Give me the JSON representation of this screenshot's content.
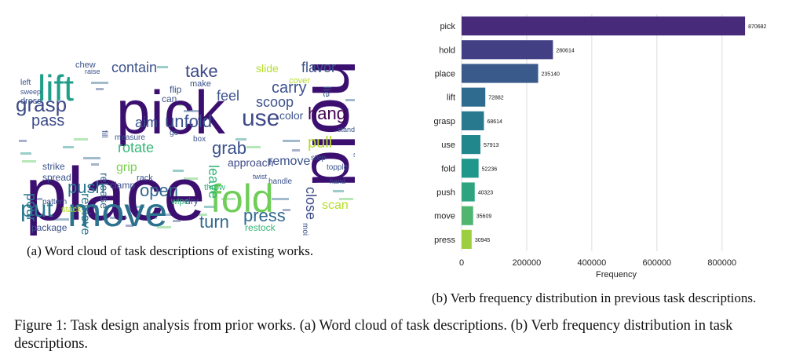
{
  "wordcloud": {
    "caption": "(a) Word cloud of task descriptions of existing works.",
    "words": [
      {
        "text": "place",
        "color": "#3b0f70",
        "large": true
      },
      {
        "text": "pick",
        "color": "#3b0f70",
        "large": true
      },
      {
        "text": "hold",
        "color": "#3b0f70",
        "large": true
      },
      {
        "text": "move",
        "color": "#2c728e",
        "large": true
      },
      {
        "text": "lift",
        "color": "#1f9e89",
        "large": true
      },
      {
        "text": "fold",
        "color": "#6ece58",
        "large": true
      },
      {
        "text": "grasp",
        "color": "#3e4a89"
      },
      {
        "text": "put",
        "color": "#2a788e"
      },
      {
        "text": "use",
        "color": "#3e4a89"
      },
      {
        "text": "push",
        "color": "#2a788e"
      },
      {
        "text": "take",
        "color": "#3e4a89"
      },
      {
        "text": "open",
        "color": "#31688e"
      },
      {
        "text": "turn",
        "color": "#31688e"
      },
      {
        "text": "press",
        "color": "#31688e"
      },
      {
        "text": "pass",
        "color": "#3e4a89"
      },
      {
        "text": "contain",
        "color": "#3b528b"
      },
      {
        "text": "flavor",
        "color": "#3b528b"
      },
      {
        "text": "unfold",
        "color": "#3b528b"
      },
      {
        "text": "aim",
        "color": "#3b528b"
      },
      {
        "text": "feel",
        "color": "#3b528b"
      },
      {
        "text": "carry",
        "color": "#3b528b"
      },
      {
        "text": "scoop",
        "color": "#3b528b"
      },
      {
        "text": "hang",
        "color": "#440154"
      },
      {
        "text": "color",
        "color": "#3b528b"
      },
      {
        "text": "rotate",
        "color": "#35b779"
      },
      {
        "text": "grab",
        "color": "#3b528b"
      },
      {
        "text": "leave",
        "color": "#35b779"
      },
      {
        "text": "pull",
        "color": "#b5de2b"
      },
      {
        "text": "retrieve",
        "color": "#2a788e"
      },
      {
        "text": "release",
        "color": "#31688e"
      },
      {
        "text": "pour",
        "color": "#2a788e"
      },
      {
        "text": "grip",
        "color": "#7ad151"
      },
      {
        "text": "approach",
        "color": "#3e4a89"
      },
      {
        "text": "remove",
        "color": "#3b528b"
      },
      {
        "text": "close",
        "color": "#3e4a89"
      },
      {
        "text": "scan",
        "color": "#b5de2b"
      },
      {
        "text": "slide",
        "color": "#b5de2b"
      },
      {
        "text": "clamp",
        "color": "#3b528b"
      },
      {
        "text": "restock",
        "color": "#35b779"
      },
      {
        "text": "spread",
        "color": "#3b528b"
      },
      {
        "text": "strike",
        "color": "#3b528b"
      },
      {
        "text": "rack",
        "color": "#3b528b"
      },
      {
        "text": "dry",
        "color": "#3b528b"
      },
      {
        "text": "wipe",
        "color": "#35b779"
      },
      {
        "text": "throw",
        "color": "#35b779"
      },
      {
        "text": "measure",
        "color": "#3b528b"
      },
      {
        "text": "fill",
        "color": "#3b528b"
      },
      {
        "text": "package",
        "color": "#3b528b"
      },
      {
        "text": "handle",
        "color": "#3b528b"
      },
      {
        "text": "moisturize",
        "color": "#3b528b"
      },
      {
        "text": "topple",
        "color": "#3b528b"
      },
      {
        "text": "chew",
        "color": "#3b528b"
      },
      {
        "text": "raise",
        "color": "#3b528b"
      },
      {
        "text": "left",
        "color": "#3b528b"
      },
      {
        "text": "sweep",
        "color": "#3b528b"
      },
      {
        "text": "dress",
        "color": "#3b528b"
      },
      {
        "text": "can",
        "color": "#3b528b"
      },
      {
        "text": "flip",
        "color": "#3b528b"
      },
      {
        "text": "make",
        "color": "#3b528b"
      },
      {
        "text": "cover",
        "color": "#b5de2b"
      },
      {
        "text": "stand",
        "color": "#3b528b"
      },
      {
        "text": "step",
        "color": "#3b528b"
      },
      {
        "text": "go",
        "color": "#3b528b"
      },
      {
        "text": "box",
        "color": "#3b528b"
      },
      {
        "text": "pattern",
        "color": "#3b528b"
      },
      {
        "text": "stack",
        "color": "#b5de2b"
      },
      {
        "text": "hand",
        "color": "#3b528b"
      },
      {
        "text": "lie",
        "color": "#3b528b"
      },
      {
        "text": "twist",
        "color": "#3b528b"
      },
      {
        "text": "set",
        "color": "#3b528b"
      }
    ]
  },
  "chart_data": {
    "type": "bar",
    "orientation": "horizontal",
    "categories": [
      "pick",
      "hold",
      "place",
      "lift",
      "grasp",
      "use",
      "fold",
      "push",
      "move",
      "press"
    ],
    "values": [
      870682,
      280614,
      235140,
      72882,
      68614,
      57913,
      52236,
      40323,
      35609,
      30945
    ],
    "data_labels": [
      "870682",
      "280614",
      "235140",
      "72882",
      "68614",
      "57913",
      "52236",
      "40323",
      "35609",
      "30945"
    ],
    "colors": [
      "#472b7a",
      "#423f85",
      "#3b5a8c",
      "#2f6b8e",
      "#28788e",
      "#22878d",
      "#1f978b",
      "#2da37f",
      "#4fb571",
      "#9bcf3f"
    ],
    "xlabel": "Frequency",
    "ylabel": "",
    "xlim": [
      0,
      950000
    ],
    "xticks": [
      0,
      200000,
      400000,
      600000,
      800000
    ],
    "xtick_labels": [
      "0",
      "200000",
      "400000",
      "600000",
      "800000"
    ],
    "grid": "vertical",
    "caption": "(b) Verb frequency distribution in previous task descriptions."
  },
  "figure_caption": "Figure 1: Task design analysis from prior works. (a) Word cloud of task descriptions. (b) Verb frequency distribution in task descriptions."
}
